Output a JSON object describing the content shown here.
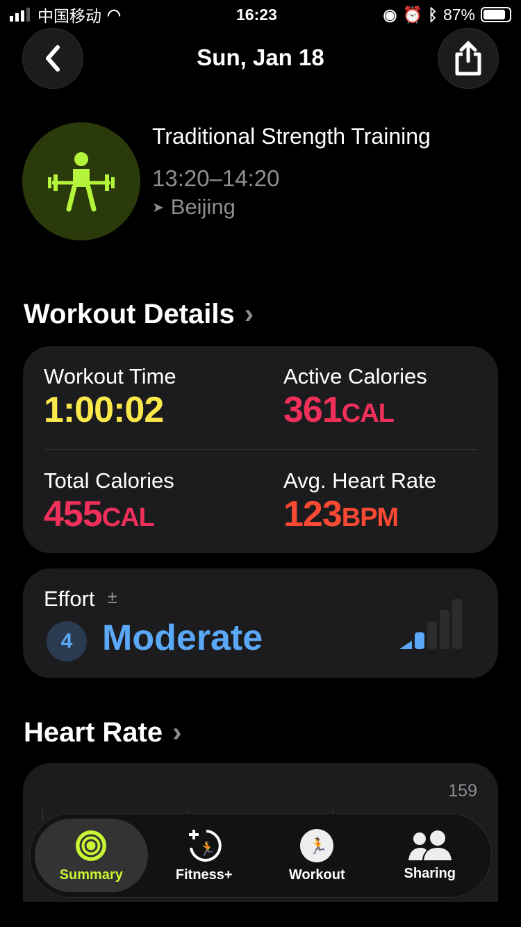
{
  "status": {
    "carrier": "中国移动",
    "time": "16:23",
    "battery": "87%"
  },
  "header": {
    "title": "Sun, Jan 18"
  },
  "workout": {
    "name": "Traditional Strength Training",
    "time_range": "13:20–14:20",
    "location": "Beijing"
  },
  "details": {
    "heading": "Workout Details",
    "workout_time": {
      "label": "Workout Time",
      "value": "1:00:02"
    },
    "active_calories": {
      "label": "Active Calories",
      "value": "361",
      "unit": "CAL"
    },
    "total_calories": {
      "label": "Total Calories",
      "value": "455",
      "unit": "CAL"
    },
    "avg_heart_rate": {
      "label": "Avg. Heart Rate",
      "value": "123",
      "unit": "BPM"
    }
  },
  "effort": {
    "label": "Effort",
    "symbol": "±",
    "level": "4",
    "text": "Moderate",
    "bars_filled": 2,
    "bars_total": 5
  },
  "heart_rate": {
    "heading": "Heart Rate",
    "max_label": "159"
  },
  "tabs": [
    {
      "label": "Summary",
      "icon": "activity-rings-icon",
      "active": true
    },
    {
      "label": "Fitness+",
      "icon": "fitness-plus-icon"
    },
    {
      "label": "Workout",
      "icon": "running-icon"
    },
    {
      "label": "Sharing",
      "icon": "people-icon"
    }
  ],
  "colors": {
    "lime": "#c8f534",
    "yellow": "#fce84a",
    "red": "#f0305a",
    "orange": "#fa4a33",
    "blue": "#5aa8f7"
  }
}
